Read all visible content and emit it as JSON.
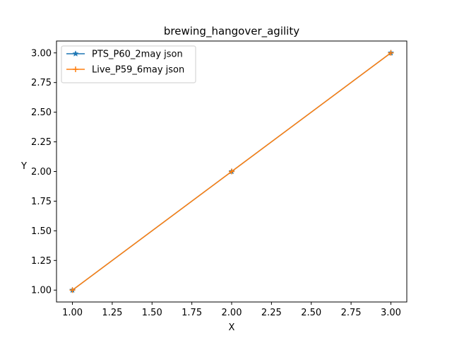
{
  "chart_data": {
    "type": "line",
    "title": "brewing_hangover_agility",
    "xlabel": "X",
    "ylabel": "Y",
    "xlim": [
      0.9,
      3.1
    ],
    "ylim": [
      0.9,
      3.1
    ],
    "x_ticks": [
      1.0,
      1.25,
      1.5,
      1.75,
      2.0,
      2.25,
      2.5,
      2.75,
      3.0
    ],
    "x_tick_labels": [
      "1.00",
      "1.25",
      "1.50",
      "1.75",
      "2.00",
      "2.25",
      "2.50",
      "2.75",
      "3.00"
    ],
    "y_ticks": [
      1.0,
      1.25,
      1.5,
      1.75,
      2.0,
      2.25,
      2.5,
      2.75,
      3.0
    ],
    "y_tick_labels": [
      "1.00",
      "1.25",
      "1.50",
      "1.75",
      "2.00",
      "2.25",
      "2.50",
      "2.75",
      "3.00"
    ],
    "grid": false,
    "legend_position": "top-left",
    "series": [
      {
        "name": "PTS_P60_2may json",
        "color": "#1f77b4",
        "marker": "star",
        "x": [
          1,
          2,
          3
        ],
        "values": [
          1,
          2,
          3
        ]
      },
      {
        "name": "Live_P59_6may json",
        "color": "#ff7f0e",
        "marker": "plus",
        "x": [
          1,
          2,
          3
        ],
        "values": [
          1,
          2,
          3
        ]
      }
    ]
  }
}
